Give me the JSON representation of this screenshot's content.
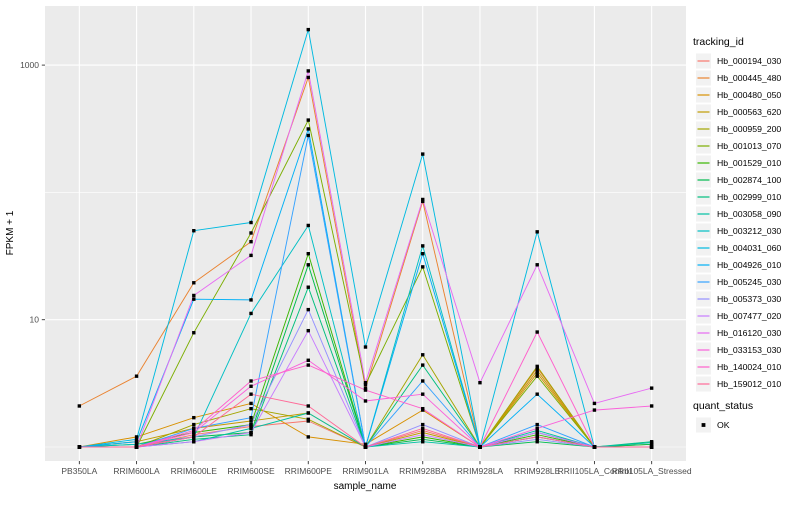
{
  "chart_data": {
    "type": "line",
    "title": "",
    "xlabel": "sample_name",
    "ylabel": "FPKM + 1",
    "y_scale": "log10",
    "ylim": [
      0.78,
      2900
    ],
    "grid": true,
    "legend_position": "right",
    "legend_title": "tracking_id",
    "quant_legend": {
      "title": "quant_status",
      "items": [
        "OK"
      ]
    },
    "y_labeled_ticks": [
      {
        "label": "1000",
        "value": 1000
      },
      {
        "label": "10",
        "value": 10
      }
    ],
    "y_gridline_values": [
      1,
      10,
      100,
      1000
    ],
    "panel_bg": "#EBEBEB",
    "grid_color": "#FFFFFF",
    "key_bg": "#F2F2F2",
    "tick_color": "#333333",
    "tick_label_color": "#4D4D4D",
    "point_color": "#000000",
    "categories": [
      "PB350LA",
      "RRIM600LA",
      "RRIM600LE",
      "RRIM600SE",
      "RRIM600PE",
      "RRIM901LA",
      "RRIM928BA",
      "RRIM928LA",
      "RRIM928LE",
      "RRII105LA_Control",
      "RRII105LA_Stressed"
    ],
    "series": [
      {
        "name": "Hb_000194_030",
        "color": "#F8766D",
        "values": [
          1,
          1,
          1.25,
          1.45,
          1.6,
          1,
          1.35,
          1,
          1.2,
          1,
          1
        ]
      },
      {
        "name": "Hb_000445_480",
        "color": "#EA8331",
        "values": [
          2.1,
          3.6,
          19.5,
          41,
          800,
          2.9,
          85,
          1,
          4.2,
          1,
          1
        ]
      },
      {
        "name": "Hb_000480_050",
        "color": "#D89000",
        "values": [
          1,
          1.2,
          1.7,
          2.2,
          1.2,
          1.05,
          1.95,
          1,
          3.8,
          1,
          1
        ]
      },
      {
        "name": "Hb_000563_620",
        "color": "#C09B00",
        "values": [
          1,
          1.1,
          1.4,
          1.6,
          1.85,
          1,
          1.3,
          1,
          4.0,
          1,
          1
        ]
      },
      {
        "name": "Hb_000959_200",
        "color": "#A3A500",
        "values": [
          1,
          1,
          1.5,
          2.0,
          1.65,
          1,
          5.3,
          1,
          4.3,
          1,
          1.05
        ]
      },
      {
        "name": "Hb_001013_070",
        "color": "#7CAE00",
        "values": [
          1,
          1,
          7.9,
          48,
          370,
          3.1,
          26,
          1,
          3.6,
          1,
          1
        ]
      },
      {
        "name": "Hb_001529_010",
        "color": "#39B600",
        "values": [
          1,
          1.05,
          1.3,
          1.5,
          33,
          1,
          1.2,
          1,
          1.25,
          1,
          1
        ]
      },
      {
        "name": "Hb_002874_100",
        "color": "#00BB4E",
        "values": [
          1,
          1,
          1.2,
          1.3,
          27,
          1,
          1.15,
          1,
          1.1,
          1,
          1.05
        ]
      },
      {
        "name": "Hb_002999_010",
        "color": "#00BF7D",
        "values": [
          1,
          1,
          1.15,
          1.25,
          18,
          1,
          4.4,
          1,
          1.3,
          1,
          1.1
        ]
      },
      {
        "name": "Hb_003058_090",
        "color": "#00C1A3",
        "values": [
          1,
          1,
          1.1,
          1.4,
          1.85,
          1,
          1.1,
          1,
          1.35,
          1,
          1.08
        ]
      },
      {
        "name": "Hb_003212_030",
        "color": "#00BFC4",
        "values": [
          1,
          1.05,
          1.2,
          11.2,
          55,
          1,
          38,
          1,
          1.2,
          1,
          1
        ]
      },
      {
        "name": "Hb_004031_060",
        "color": "#00BAE0",
        "values": [
          1,
          1.15,
          50,
          58,
          1900,
          6.1,
          200,
          1,
          49,
          1,
          1
        ]
      },
      {
        "name": "Hb_004926_010",
        "color": "#00B0F6",
        "values": [
          1,
          1.1,
          14.5,
          14.3,
          315,
          1,
          33,
          1,
          2.6,
          1,
          1
        ]
      },
      {
        "name": "Hb_005245_030",
        "color": "#35A2FF",
        "values": [
          1,
          1,
          1.4,
          1.7,
          280,
          1,
          3.3,
          1,
          1.5,
          1,
          1
        ]
      },
      {
        "name": "Hb_005373_030",
        "color": "#9590FF",
        "values": [
          1,
          1,
          1.2,
          1.5,
          12,
          1,
          1.5,
          1,
          1.15,
          1,
          1
        ]
      },
      {
        "name": "Hb_007477_020",
        "color": "#C77CFF",
        "values": [
          1,
          1,
          1.1,
          1.3,
          8.2,
          1,
          1.25,
          1,
          1.3,
          1,
          1
        ]
      },
      {
        "name": "Hb_016120_030",
        "color": "#E76BF3",
        "values": [
          1,
          1,
          15.5,
          32,
          900,
          3.2,
          88,
          3.2,
          27,
          2.2,
          2.9
        ]
      },
      {
        "name": "Hb_033153_030",
        "color": "#FA62DB",
        "values": [
          1,
          1,
          1.3,
          3.0,
          4.8,
          2.3,
          2.6,
          1,
          1.4,
          1.95,
          2.1
        ]
      },
      {
        "name": "Hb_140024_010",
        "color": "#FF61CC",
        "values": [
          1,
          1,
          1.35,
          3.3,
          4.4,
          2.8,
          2.0,
          1,
          8.0,
          1,
          1
        ]
      },
      {
        "name": "Hb_159012_010",
        "color": "#FF6A98",
        "values": [
          1,
          1,
          1.2,
          2.6,
          2.1,
          1,
          1.4,
          1,
          1.2,
          1,
          1
        ]
      }
    ]
  }
}
